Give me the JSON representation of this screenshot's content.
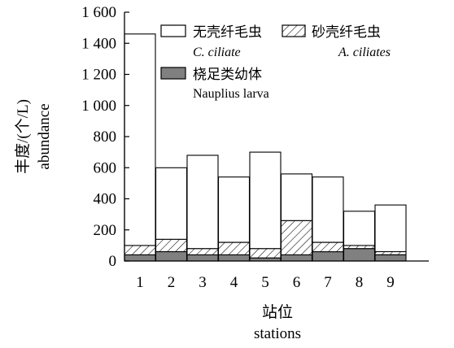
{
  "chart_data": {
    "type": "bar",
    "stacked": true,
    "categories": [
      "1",
      "2",
      "3",
      "4",
      "5",
      "6",
      "7",
      "8",
      "9"
    ],
    "series": [
      {
        "name": "桡足类幼体 Nauplius larva",
        "values": [
          40,
          60,
          40,
          40,
          20,
          40,
          60,
          80,
          40
        ],
        "fill": "#808080"
      },
      {
        "name": "砂壳纤毛虫 A. ciliates",
        "values": [
          60,
          80,
          40,
          80,
          60,
          220,
          60,
          20,
          20
        ],
        "fill": "hatch"
      },
      {
        "name": "无壳纤毛虫 C. ciliate",
        "values": [
          1360,
          460,
          600,
          420,
          620,
          300,
          420,
          220,
          300
        ],
        "fill": "#ffffff"
      }
    ],
    "legend": {
      "c_ciliate_cn": "无壳纤毛虫",
      "c_ciliate_en": "C. ciliate",
      "a_ciliates_cn": "砂壳纤毛虫",
      "a_ciliates_en": "A. ciliates",
      "nauplius_cn": "桡足类幼体",
      "nauplius_en": "Nauplius larva",
      "placement": "top-right"
    },
    "ylabel_cn": "丰度/(个/L)",
    "ylabel_en": "abundance",
    "xlabel_cn": "站位",
    "xlabel_en": "stations",
    "ylim": [
      0,
      1600
    ],
    "yticks": [
      0,
      200,
      400,
      600,
      800,
      1000,
      1200,
      1400,
      1600
    ],
    "ytick_labels": [
      "0",
      "200",
      "400",
      "600",
      "800",
      "1 000",
      "1 200",
      "1 400",
      "1 600"
    ],
    "grid": false
  }
}
